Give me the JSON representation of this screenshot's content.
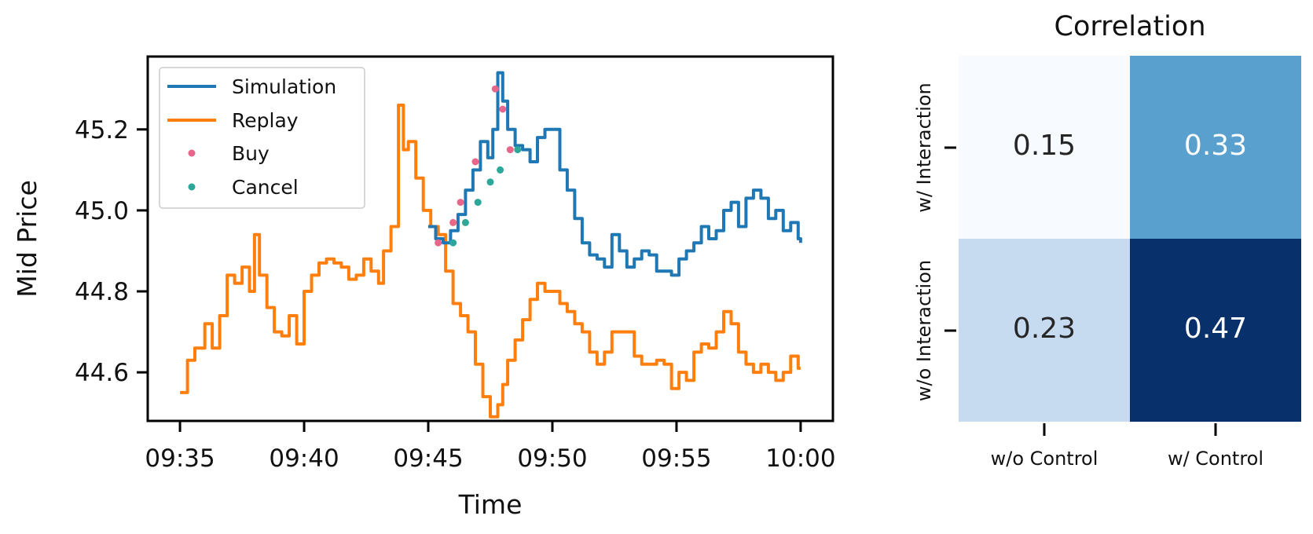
{
  "chart_data": [
    {
      "type": "line",
      "xlabel": "Time",
      "ylabel": "Mid Price",
      "xlim": [
        -1.3,
        26.3
      ],
      "ylim": [
        44.48,
        45.38
      ],
      "x_ticks": [
        "09:35",
        "09:40",
        "09:45",
        "09:50",
        "09:55",
        "10:00"
      ],
      "x_tick_values": [
        0,
        5,
        10,
        15,
        20,
        25
      ],
      "y_ticks": [
        "44.6",
        "44.8",
        "45.0",
        "45.2"
      ],
      "y_tick_values": [
        44.6,
        44.8,
        45.0,
        45.2
      ],
      "legend": {
        "placement": "top-left",
        "entries": [
          "Simulation",
          "Replay",
          "Buy",
          "Cancel"
        ]
      },
      "series": [
        {
          "name": "Replay",
          "color": "#ff7f0e",
          "x": [
            0,
            0.3,
            0.6,
            1.0,
            1.3,
            1.6,
            1.9,
            2.2,
            2.5,
            2.8,
            3.0,
            3.2,
            3.5,
            3.8,
            4.1,
            4.4,
            4.7,
            5.0,
            5.3,
            5.6,
            5.9,
            6.2,
            6.5,
            6.8,
            7.1,
            7.4,
            7.7,
            8.0,
            8.2,
            8.5,
            8.8,
            9.0,
            9.2,
            9.5,
            9.8,
            10.1,
            10.4,
            10.7,
            11.0,
            11.3,
            11.6,
            11.9,
            12.2,
            12.5,
            12.8,
            13.0,
            13.2,
            13.5,
            13.8,
            14.1,
            14.4,
            14.7,
            15.0,
            15.3,
            15.6,
            15.9,
            16.2,
            16.5,
            16.8,
            17.1,
            17.4,
            17.7,
            18.0,
            18.3,
            18.6,
            18.9,
            19.2,
            19.5,
            19.8,
            20.1,
            20.4,
            20.7,
            21.0,
            21.3,
            21.6,
            21.9,
            22.2,
            22.5,
            22.8,
            23.1,
            23.4,
            23.7,
            24.0,
            24.3,
            24.6,
            24.9,
            25.0
          ],
          "values": [
            44.55,
            44.63,
            44.66,
            44.72,
            44.66,
            44.74,
            44.84,
            44.82,
            44.86,
            44.8,
            44.94,
            44.84,
            44.76,
            44.7,
            44.69,
            44.74,
            44.67,
            44.8,
            44.84,
            44.87,
            44.88,
            44.87,
            44.86,
            44.83,
            44.84,
            44.88,
            44.85,
            44.82,
            44.9,
            44.96,
            45.26,
            45.15,
            45.17,
            45.08,
            45.0,
            44.96,
            44.94,
            44.85,
            44.77,
            44.74,
            44.7,
            44.62,
            44.54,
            44.49,
            44.52,
            44.57,
            44.63,
            44.68,
            44.73,
            44.78,
            44.82,
            44.8,
            44.8,
            44.77,
            44.75,
            44.72,
            44.7,
            44.65,
            44.62,
            44.65,
            44.7,
            44.7,
            44.7,
            44.64,
            44.62,
            44.62,
            44.63,
            44.62,
            44.56,
            44.6,
            44.58,
            44.65,
            44.67,
            44.66,
            44.7,
            44.75,
            44.72,
            44.65,
            44.62,
            44.6,
            44.62,
            44.6,
            44.58,
            44.6,
            44.64,
            44.61,
            44.61
          ]
        },
        {
          "name": "Simulation",
          "color": "#1f77b4",
          "x": [
            10.0,
            10.3,
            10.6,
            10.9,
            11.2,
            11.5,
            11.8,
            12.1,
            12.4,
            12.6,
            12.8,
            13.0,
            13.2,
            13.5,
            13.8,
            14.1,
            14.4,
            14.7,
            15.0,
            15.3,
            15.6,
            15.9,
            16.2,
            16.5,
            16.8,
            17.1,
            17.4,
            17.7,
            18.0,
            18.3,
            18.6,
            18.9,
            19.2,
            19.5,
            19.8,
            20.1,
            20.4,
            20.7,
            21.0,
            21.3,
            21.6,
            21.9,
            22.2,
            22.5,
            22.8,
            23.1,
            23.4,
            23.7,
            24.0,
            24.3,
            24.6,
            24.9,
            25.0
          ],
          "values": [
            44.96,
            44.93,
            44.92,
            44.95,
            44.99,
            45.05,
            45.1,
            45.17,
            45.13,
            45.2,
            45.34,
            45.27,
            45.2,
            45.16,
            45.15,
            45.12,
            45.18,
            45.2,
            45.2,
            45.1,
            45.05,
            44.98,
            44.92,
            44.89,
            44.88,
            44.86,
            44.94,
            44.9,
            44.86,
            44.88,
            44.9,
            44.89,
            44.85,
            44.85,
            44.84,
            44.88,
            44.9,
            44.92,
            44.96,
            44.93,
            44.95,
            45.0,
            45.02,
            44.96,
            45.03,
            45.05,
            45.03,
            44.98,
            45.0,
            44.95,
            44.97,
            44.93,
            44.92
          ]
        }
      ],
      "markers": [
        {
          "name": "Buy",
          "color": "#e8668a",
          "x": [
            10.4,
            11.0,
            11.3,
            11.9,
            12.7,
            13.0,
            13.3
          ],
          "values": [
            44.92,
            44.97,
            45.02,
            45.12,
            45.3,
            45.25,
            45.15
          ]
        },
        {
          "name": "Cancel",
          "color": "#2ba89a",
          "x": [
            11.0,
            11.5,
            12.0,
            12.5,
            12.9,
            13.6
          ],
          "values": [
            44.92,
            44.97,
            45.02,
            45.07,
            45.1,
            45.15
          ]
        }
      ]
    },
    {
      "type": "heatmap",
      "title": "Correlation",
      "rows": [
        "w/ Interaction",
        "w/o Interaction"
      ],
      "columns": [
        "w/o Control",
        "w/ Control"
      ],
      "values": [
        [
          0.15,
          0.33
        ],
        [
          0.23,
          0.47
        ]
      ],
      "labels": [
        [
          "0.15",
          "0.33"
        ],
        [
          "0.23",
          "0.47"
        ]
      ],
      "colors": [
        [
          "#f7fbff",
          "#5aa0cf"
        ],
        [
          "#c6dbef",
          "#08306b"
        ]
      ],
      "label_colors": [
        [
          "#262626",
          "#ffffff"
        ],
        [
          "#262626",
          "#ffffff"
        ]
      ]
    }
  ]
}
